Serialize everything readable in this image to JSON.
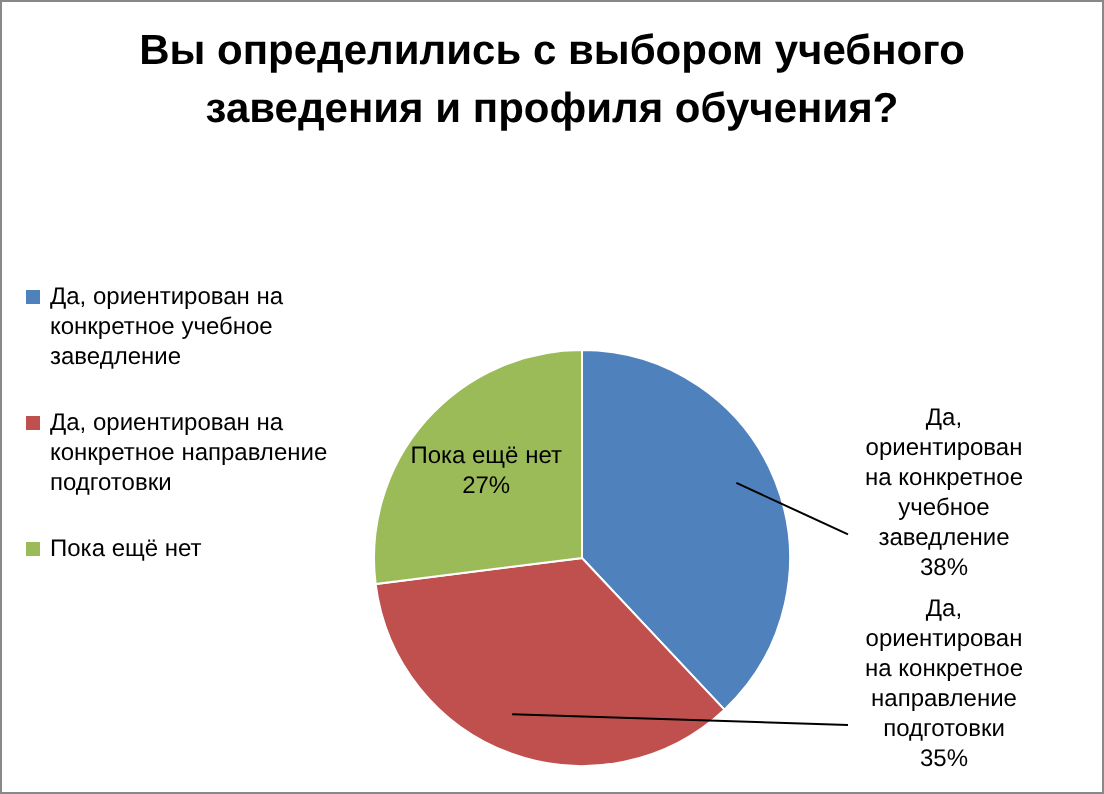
{
  "chart_data": {
    "type": "pie",
    "title": "Вы определились с выбором учебного заведения и профиля обучения?",
    "categories": [
      "Да, ориентирован на конкретное учебное заведление",
      "Да, ориентирован на конкретное направление подготовки",
      "Пока ещё нет"
    ],
    "values": [
      38,
      35,
      27
    ],
    "value_labels": [
      "38%",
      "35%",
      "27%"
    ],
    "colors": [
      "#4f81bd",
      "#c0504d",
      "#9bbb59"
    ],
    "legend": "left"
  }
}
